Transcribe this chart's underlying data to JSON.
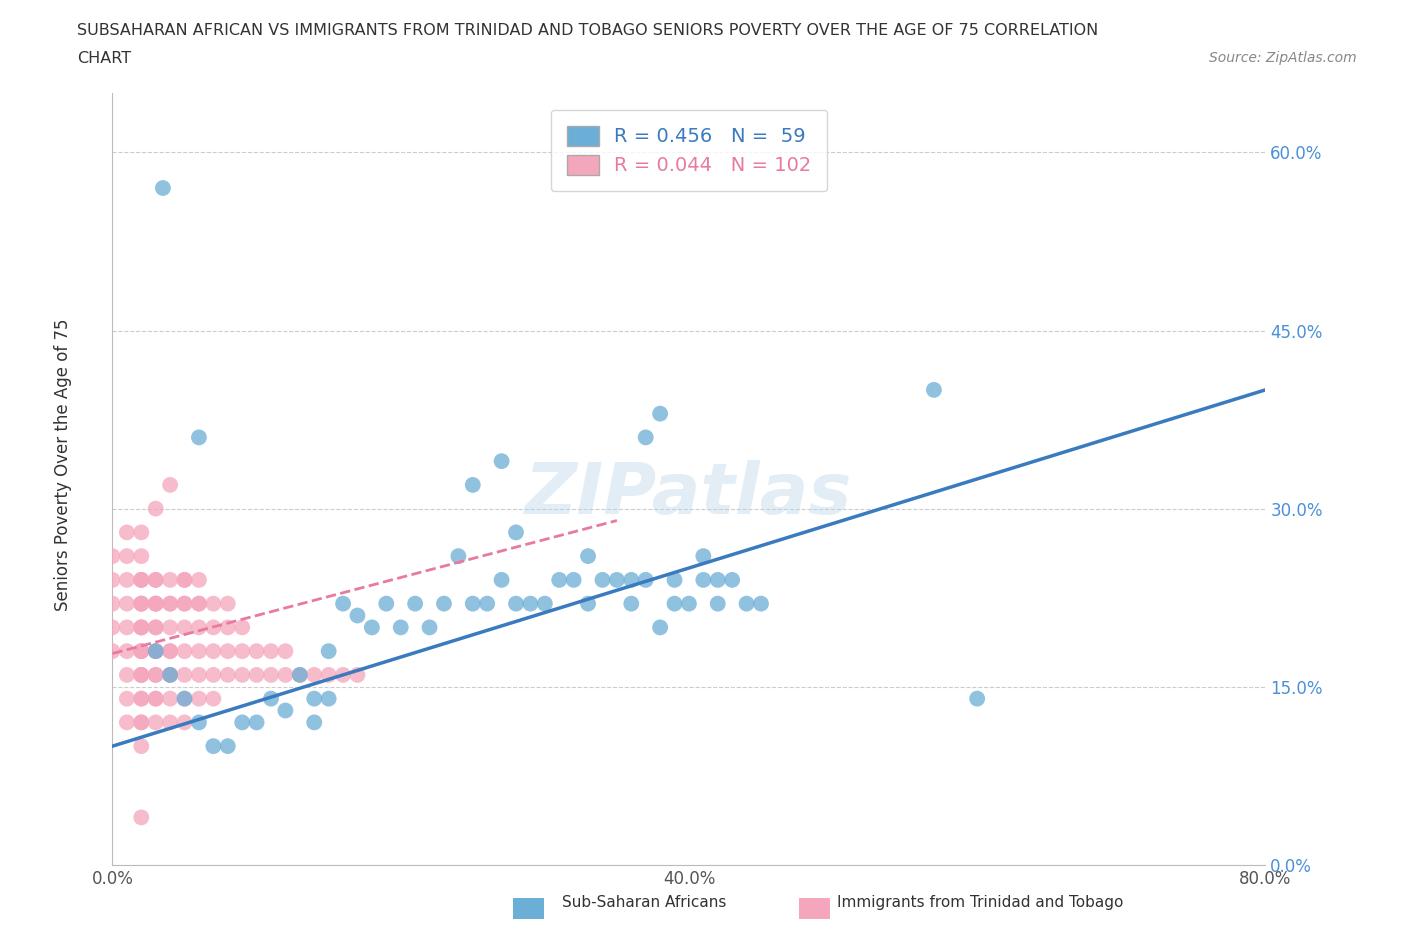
{
  "title_line1": "SUBSAHARAN AFRICAN VS IMMIGRANTS FROM TRINIDAD AND TOBAGO SENIORS POVERTY OVER THE AGE OF 75 CORRELATION",
  "title_line2": "CHART",
  "source": "Source: ZipAtlas.com",
  "ylabel": "Seniors Poverty Over the Age of 75",
  "xmin": 0.0,
  "xmax": 0.8,
  "ymin": 0.0,
  "ymax": 0.65,
  "yticks": [
    0.0,
    0.15,
    0.3,
    0.45,
    0.6
  ],
  "ytick_labels": [
    "0.0%",
    "15.0%",
    "30.0%",
    "45.0%",
    "60.0%"
  ],
  "xticks": [
    0.0,
    0.2,
    0.4,
    0.6,
    0.8
  ],
  "xtick_labels": [
    "0.0%",
    "",
    "40.0%",
    "",
    "80.0%"
  ],
  "blue_color": "#6baed6",
  "pink_color": "#f4a6bc",
  "blue_line_color": "#3a7abf",
  "pink_line_color": "#e87aa0",
  "blue_R": 0.456,
  "blue_N": 59,
  "pink_R": 0.044,
  "pink_N": 102,
  "watermark": "ZIPatlas",
  "grid_color": "#cccccc",
  "blue_scatter_x": [
    0.035,
    0.06,
    0.07,
    0.09,
    0.1,
    0.11,
    0.12,
    0.13,
    0.14,
    0.14,
    0.15,
    0.15,
    0.16,
    0.17,
    0.18,
    0.19,
    0.2,
    0.21,
    0.22,
    0.23,
    0.24,
    0.25,
    0.26,
    0.27,
    0.28,
    0.29,
    0.3,
    0.31,
    0.32,
    0.33,
    0.33,
    0.34,
    0.35,
    0.36,
    0.36,
    0.37,
    0.38,
    0.39,
    0.39,
    0.4,
    0.41,
    0.41,
    0.42,
    0.42,
    0.43,
    0.44,
    0.45,
    0.25,
    0.27,
    0.28,
    0.38,
    0.6,
    0.37,
    0.57,
    0.03,
    0.04,
    0.05,
    0.06,
    0.08
  ],
  "blue_scatter_y": [
    0.57,
    0.36,
    0.1,
    0.12,
    0.12,
    0.14,
    0.13,
    0.16,
    0.14,
    0.12,
    0.14,
    0.18,
    0.22,
    0.21,
    0.2,
    0.22,
    0.2,
    0.22,
    0.2,
    0.22,
    0.26,
    0.22,
    0.22,
    0.24,
    0.22,
    0.22,
    0.22,
    0.24,
    0.24,
    0.22,
    0.26,
    0.24,
    0.24,
    0.22,
    0.24,
    0.24,
    0.2,
    0.22,
    0.24,
    0.22,
    0.26,
    0.24,
    0.22,
    0.24,
    0.24,
    0.22,
    0.22,
    0.32,
    0.34,
    0.28,
    0.38,
    0.14,
    0.36,
    0.4,
    0.18,
    0.16,
    0.14,
    0.12,
    0.1
  ],
  "pink_scatter_x": [
    0.0,
    0.0,
    0.0,
    0.0,
    0.0,
    0.01,
    0.01,
    0.01,
    0.01,
    0.01,
    0.01,
    0.01,
    0.01,
    0.01,
    0.02,
    0.02,
    0.02,
    0.02,
    0.02,
    0.02,
    0.02,
    0.02,
    0.02,
    0.02,
    0.02,
    0.02,
    0.02,
    0.02,
    0.02,
    0.02,
    0.02,
    0.02,
    0.02,
    0.02,
    0.02,
    0.02,
    0.03,
    0.03,
    0.03,
    0.03,
    0.03,
    0.03,
    0.03,
    0.03,
    0.03,
    0.03,
    0.03,
    0.03,
    0.03,
    0.03,
    0.04,
    0.04,
    0.04,
    0.04,
    0.04,
    0.04,
    0.04,
    0.04,
    0.04,
    0.04,
    0.05,
    0.05,
    0.05,
    0.05,
    0.05,
    0.05,
    0.05,
    0.05,
    0.06,
    0.06,
    0.06,
    0.06,
    0.06,
    0.06,
    0.06,
    0.07,
    0.07,
    0.07,
    0.07,
    0.07,
    0.08,
    0.08,
    0.08,
    0.08,
    0.09,
    0.09,
    0.09,
    0.1,
    0.1,
    0.11,
    0.11,
    0.12,
    0.12,
    0.13,
    0.14,
    0.15,
    0.16,
    0.17,
    0.04,
    0.02,
    0.03,
    0.05
  ],
  "pink_scatter_y": [
    0.18,
    0.2,
    0.22,
    0.24,
    0.26,
    0.18,
    0.2,
    0.22,
    0.24,
    0.14,
    0.16,
    0.12,
    0.26,
    0.28,
    0.16,
    0.18,
    0.2,
    0.22,
    0.24,
    0.14,
    0.12,
    0.26,
    0.28,
    0.16,
    0.18,
    0.2,
    0.22,
    0.14,
    0.24,
    0.12,
    0.16,
    0.1,
    0.22,
    0.18,
    0.2,
    0.24,
    0.16,
    0.18,
    0.2,
    0.22,
    0.14,
    0.24,
    0.12,
    0.16,
    0.22,
    0.18,
    0.2,
    0.24,
    0.14,
    0.22,
    0.16,
    0.18,
    0.2,
    0.22,
    0.14,
    0.24,
    0.12,
    0.22,
    0.16,
    0.18,
    0.16,
    0.18,
    0.2,
    0.22,
    0.14,
    0.24,
    0.12,
    0.22,
    0.16,
    0.18,
    0.2,
    0.22,
    0.14,
    0.24,
    0.22,
    0.16,
    0.18,
    0.2,
    0.22,
    0.14,
    0.16,
    0.18,
    0.2,
    0.22,
    0.16,
    0.18,
    0.2,
    0.16,
    0.18,
    0.16,
    0.18,
    0.16,
    0.18,
    0.16,
    0.16,
    0.16,
    0.16,
    0.16,
    0.32,
    0.04,
    0.3,
    0.24
  ]
}
